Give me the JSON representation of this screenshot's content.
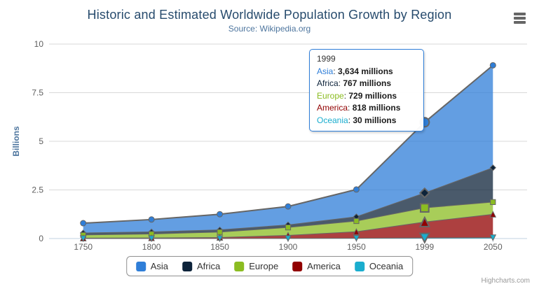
{
  "header": {
    "title": "Historic and Estimated Worldwide Population Growth by Region",
    "subtitle": "Source: Wikipedia.org"
  },
  "credits": "Highcharts.com",
  "chart_data": {
    "type": "area",
    "stacking": "normal",
    "stack_order": "first-series-on-top",
    "title": "Historic and Estimated Worldwide Population Growth by Region",
    "subtitle": "Source: Wikipedia.org",
    "categories": [
      "1750",
      "1800",
      "1850",
      "1900",
      "1950",
      "1999",
      "2050"
    ],
    "unit": "millions",
    "series": [
      {
        "name": "Asia",
        "color": "#2f7ed8",
        "marker": "circle",
        "values": [
          502,
          635,
          809,
          947,
          1402,
          3634,
          5268
        ]
      },
      {
        "name": "Africa",
        "color": "#0d233a",
        "marker": "diamond",
        "values": [
          106,
          107,
          111,
          133,
          221,
          767,
          1766
        ]
      },
      {
        "name": "Europe",
        "color": "#8bbc21",
        "marker": "square",
        "values": [
          163,
          203,
          276,
          408,
          547,
          729,
          628
        ]
      },
      {
        "name": "America",
        "color": "#910000",
        "marker": "triangle",
        "values": [
          18,
          31,
          54,
          156,
          339,
          818,
          1201
        ]
      },
      {
        "name": "Oceania",
        "color": "#1aadce",
        "marker": "triangle-down",
        "values": [
          2,
          2,
          2,
          6,
          13,
          30,
          46
        ]
      }
    ],
    "ylabel": "Billions",
    "yticks": [
      "0",
      "2.5",
      "5",
      "7.5",
      "10"
    ],
    "ytick_values": [
      0,
      2.5,
      5,
      7.5,
      10
    ],
    "ylim": [
      0,
      10
    ],
    "grid": true,
    "line_color": "#666666",
    "fill_opacity": 0.75,
    "hover_index": 5,
    "legend_position": "bottom"
  },
  "tooltip": {
    "header": "1999",
    "sep": ": ",
    "rows": [
      {
        "name": "Asia",
        "value": "3,634 millions"
      },
      {
        "name": "Africa",
        "value": "767 millions"
      },
      {
        "name": "Europe",
        "value": "729 millions"
      },
      {
        "name": "America",
        "value": "818 millions"
      },
      {
        "name": "Oceania",
        "value": "30 millions"
      }
    ]
  },
  "colors": {
    "title": "#274b6d",
    "subtitle": "#4d759e",
    "axis_label": "#606060",
    "axis_title": "#4d759e",
    "grid": "#d8d8d8",
    "axis_line": "#c0d0e0",
    "legend_border": "#909090",
    "legend_text": "#333333",
    "tooltip_border": "#2f7ed8",
    "credits": "#999999",
    "menu_icon": "#666666"
  }
}
